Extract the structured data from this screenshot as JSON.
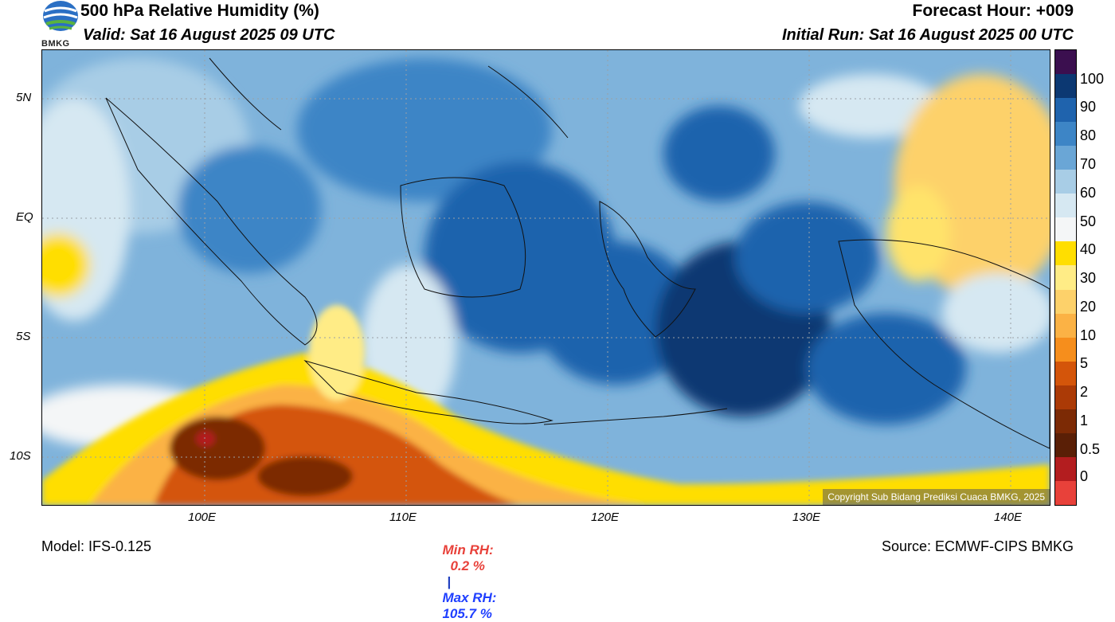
{
  "header": {
    "title": "500 hPa Relative Humidity (%)",
    "valid": "Valid: Sat 16 August 2025 09 UTC",
    "forecast_hour": "Forecast Hour: +009",
    "initial_run": "Initial Run: Sat 16 August 2025 00 UTC"
  },
  "logo": {
    "text": "BMKG"
  },
  "map": {
    "lat_ticks": [
      "5N",
      "EQ",
      "5S",
      "10S"
    ],
    "lon_ticks": [
      "100E",
      "110E",
      "120E",
      "130E",
      "140E"
    ],
    "copyright": "Copyright Sub Bidang Prediksi Cuaca BMKG, 2025"
  },
  "colorbar": {
    "labels": [
      "100",
      "90",
      "80",
      "70",
      "60",
      "50",
      "40",
      "30",
      "20",
      "10",
      "5",
      "2",
      "1",
      "0.5",
      "0"
    ],
    "colors": [
      "#3b0f4f",
      "#0c3872",
      "#1f63ad",
      "#3d85c6",
      "#6aa6d6",
      "#a8cde6",
      "#d6e8f2",
      "#f4f6f7",
      "#ffde00",
      "#ffec86",
      "#fdd16a",
      "#fbb245",
      "#f68e1c",
      "#d4550a",
      "#ab3a06",
      "#7c2a05",
      "#5a1f06",
      "#b31d1f",
      "#e8413a"
    ]
  },
  "footer": {
    "model": "Model: IFS-0.125",
    "min_rh_label": "Min RH:",
    "min_rh_value": "0.2 %",
    "separator": "|",
    "max_rh_label": "Max RH:",
    "max_rh_value": "105.7 %",
    "source": "Source: ECMWF-CIPS BMKG"
  }
}
